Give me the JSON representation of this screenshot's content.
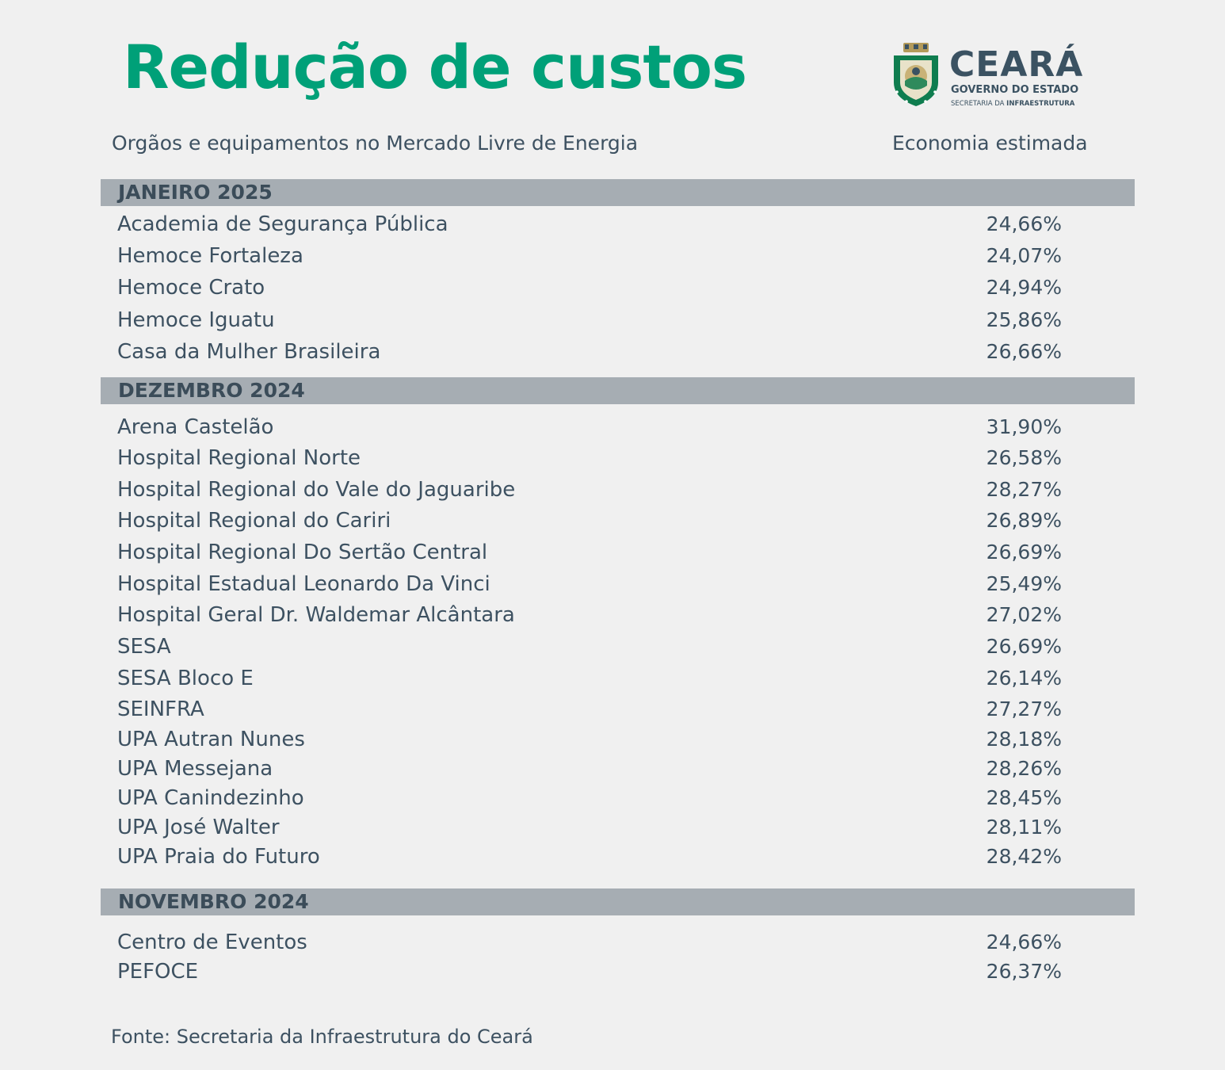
{
  "header": {
    "title": "Redução de custos",
    "logo": {
      "name": "CEARÁ",
      "subtitle": "GOVERNO DO ESTADO",
      "dept_prefix": "SECRETARIA DA ",
      "dept_bold": "INFRAESTRUTURA",
      "emblem_icon": "ceara-coat-of-arms-icon"
    }
  },
  "columns": {
    "left": "Orgãos e equipamentos no Mercado Livre de Energia",
    "right": "Economia estimada"
  },
  "sections": [
    {
      "title": "JANEIRO 2025",
      "rows": [
        {
          "name": "Academia de Segurança Pública",
          "value": "24,66%"
        },
        {
          "name": "Hemoce Fortaleza",
          "value": "24,07%"
        },
        {
          "name": "Hemoce Crato",
          "value": "24,94%"
        },
        {
          "name": "Hemoce Iguatu",
          "value": "25,86%"
        },
        {
          "name": "Casa da Mulher Brasileira",
          "value": "26,66%"
        }
      ]
    },
    {
      "title": "DEZEMBRO 2024",
      "rows": [
        {
          "name": "Arena Castelão",
          "value": "31,90%"
        },
        {
          "name": "Hospital Regional Norte",
          "value": "26,58%"
        },
        {
          "name": "Hospital Regional do Vale do Jaguaribe",
          "value": "28,27%"
        },
        {
          "name": "Hospital Regional do Cariri",
          "value": "26,89%"
        },
        {
          "name": "Hospital Regional Do Sertão Central",
          "value": "26,69%"
        },
        {
          "name": "Hospital Estadual Leonardo Da Vinci",
          "value": "25,49%"
        },
        {
          "name": "Hospital Geral Dr. Waldemar Alcântara",
          "value": "27,02%"
        },
        {
          "name": "SESA",
          "value": "26,69%"
        },
        {
          "name": "SESA Bloco E",
          "value": "26,14%"
        },
        {
          "name": "SEINFRA",
          "value": "27,27%"
        },
        {
          "name": "UPA Autran Nunes",
          "value": "28,18%"
        },
        {
          "name": "UPA Messejana",
          "value": "28,26%"
        },
        {
          "name": "UPA Canindezinho",
          "value": "28,45%"
        },
        {
          "name": "UPA José Walter",
          "value": "28,11%"
        },
        {
          "name": "UPA Praia do Futuro",
          "value": "28,42%"
        }
      ]
    },
    {
      "title": "NOVEMBRO 2024",
      "rows": [
        {
          "name": "Centro de Eventos",
          "value": "24,66%"
        },
        {
          "name": "PEFOCE",
          "value": "26,37%"
        }
      ]
    }
  ],
  "source": "Fonte: Secretaria da Infraestrutura do Ceará"
}
